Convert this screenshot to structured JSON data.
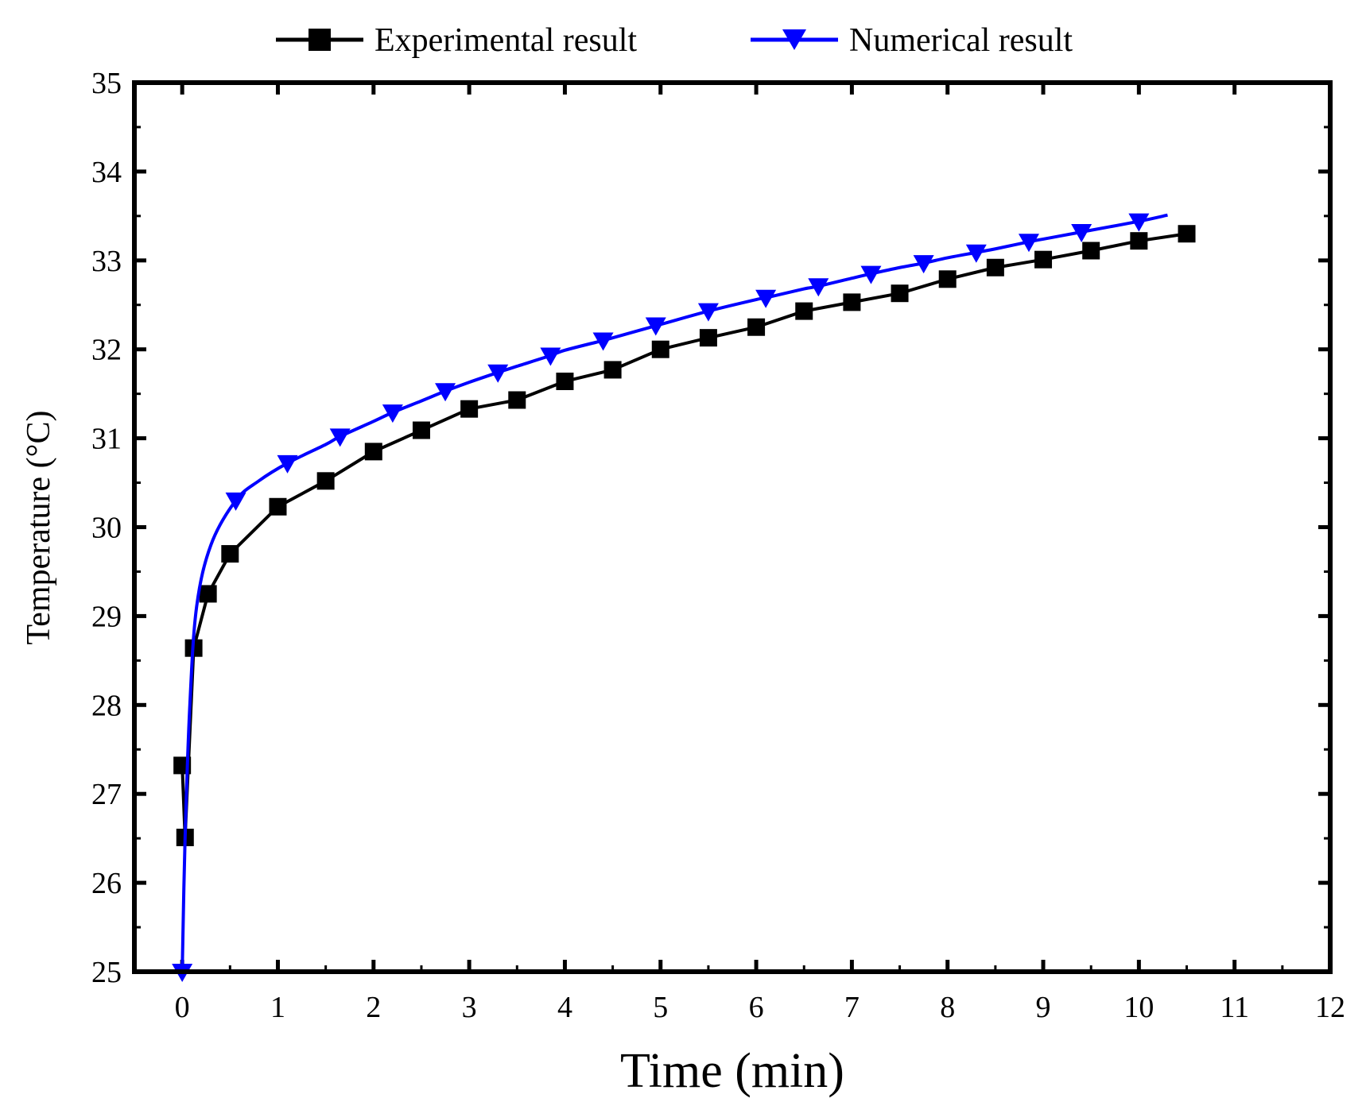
{
  "chart_data": {
    "type": "line",
    "title": "",
    "xlabel": "Time (min)",
    "ylabel": "Temperature (°C)",
    "xlim": [
      -0.5,
      12
    ],
    "ylim": [
      25,
      35
    ],
    "xticks": [
      0,
      1,
      2,
      3,
      4,
      5,
      6,
      7,
      8,
      9,
      10,
      11,
      12
    ],
    "yticks": [
      25,
      26,
      27,
      28,
      29,
      30,
      31,
      32,
      33,
      34,
      35
    ],
    "legend_position": "top-center",
    "series": [
      {
        "name": "Experimental result",
        "color": "#000000",
        "marker": "square",
        "smooth": false,
        "x": [
          0,
          0.03,
          0.12,
          0.27,
          0.5,
          1.0,
          1.5,
          2.0,
          2.5,
          3.0,
          3.5,
          4.0,
          4.5,
          5.0,
          5.5,
          6.0,
          6.5,
          7.0,
          7.5,
          8.0,
          8.5,
          9.0,
          9.5,
          10.0,
          10.5
        ],
        "y": [
          27.32,
          26.51,
          28.64,
          29.25,
          29.7,
          30.23,
          30.52,
          30.85,
          31.09,
          31.33,
          31.43,
          31.64,
          31.77,
          32.0,
          32.13,
          32.25,
          32.43,
          32.53,
          32.63,
          32.79,
          32.92,
          33.01,
          33.11,
          33.22,
          33.3
        ]
      },
      {
        "name": "Numerical result",
        "color": "#0000ff",
        "marker": "triangle-down",
        "smooth": true,
        "x": [
          0,
          0.03,
          0.08,
          0.15,
          0.3,
          0.56,
          0.8,
          1.1,
          1.5,
          1.65,
          2.0,
          2.2,
          2.5,
          2.75,
          3.0,
          3.3,
          3.5,
          3.85,
          4.0,
          4.4,
          4.5,
          5.0,
          5.5,
          6.0,
          6.1,
          6.5,
          6.65,
          7.0,
          7.2,
          7.5,
          7.75,
          8.0,
          8.3,
          8.5,
          8.85,
          9.0,
          9.4,
          9.5,
          10.0,
          10.3
        ],
        "y": [
          25.0,
          26.5,
          28.0,
          29.1,
          29.8,
          30.3,
          30.52,
          30.72,
          30.93,
          31.02,
          31.19,
          31.29,
          31.42,
          31.53,
          31.63,
          31.74,
          31.81,
          31.93,
          31.99,
          32.1,
          32.13,
          32.28,
          32.43,
          32.56,
          32.58,
          32.68,
          32.71,
          32.8,
          32.85,
          32.92,
          32.97,
          33.03,
          33.09,
          33.13,
          33.21,
          33.24,
          33.32,
          33.34,
          33.44,
          33.51
        ],
        "marker_x": [
          0,
          0.56,
          1.1,
          1.65,
          2.2,
          2.75,
          3.3,
          3.85,
          4.4,
          4.95,
          5.5,
          6.1,
          6.65,
          7.2,
          7.75,
          8.3,
          8.85,
          9.4,
          10.0
        ],
        "marker_y": [
          25.0,
          30.3,
          30.72,
          31.02,
          31.29,
          31.53,
          31.74,
          31.93,
          32.1,
          32.27,
          32.43,
          32.58,
          32.71,
          32.85,
          32.97,
          33.09,
          33.21,
          33.32,
          33.44
        ]
      }
    ]
  }
}
